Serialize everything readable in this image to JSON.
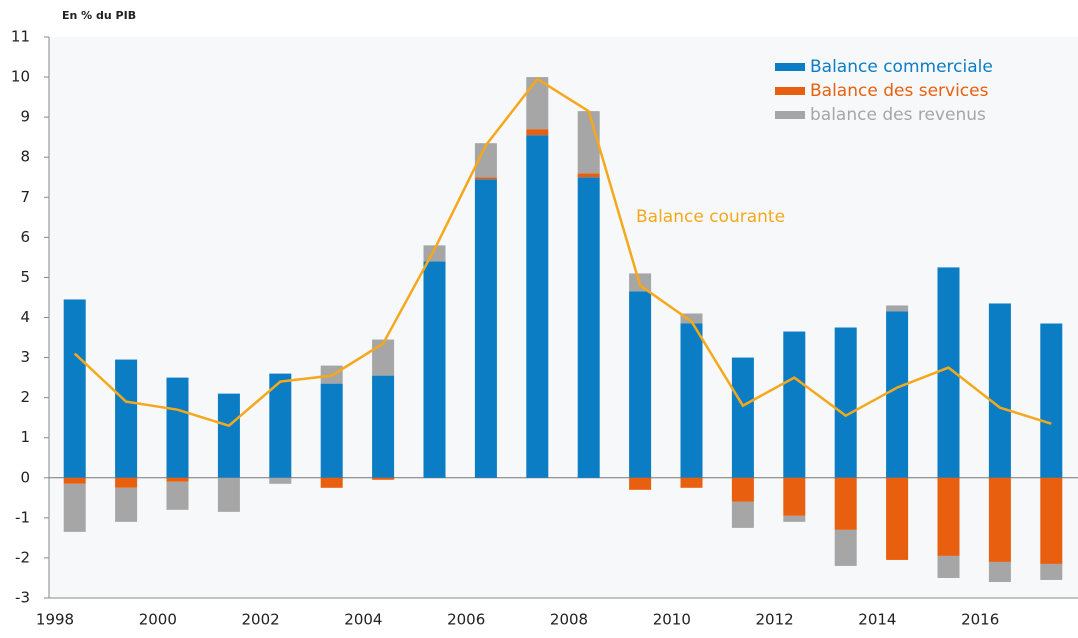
{
  "chart_data": {
    "type": "bar",
    "stacked": true,
    "title": "En % du PIB",
    "categories": [
      "1998",
      null,
      "2000",
      null,
      "2002",
      null,
      "2004",
      null,
      "2006",
      null,
      "2008",
      null,
      "2010",
      null,
      "2012",
      null,
      "2014",
      null,
      "2016",
      null
    ],
    "series": [
      {
        "name": "Balance commerciale",
        "color": "#0b7dc4",
        "values": [
          4.45,
          2.95,
          2.5,
          2.1,
          2.6,
          2.35,
          2.55,
          5.4,
          7.45,
          8.55,
          7.5,
          4.65,
          3.85,
          3.0,
          3.65,
          3.75,
          4.15,
          5.25,
          4.35,
          3.85
        ]
      },
      {
        "name": "Balance des services",
        "color": "#e8600f",
        "values": [
          -0.15,
          -0.25,
          -0.1,
          0,
          0,
          -0.25,
          -0.05,
          0,
          0.05,
          0.15,
          0.1,
          -0.3,
          -0.25,
          -0.6,
          -0.95,
          -1.3,
          -2.05,
          -1.95,
          -2.1,
          -2.15
        ]
      },
      {
        "name": "balance des revenus",
        "color": "#a6a6a6",
        "values": [
          -1.2,
          -0.85,
          -0.7,
          -0.85,
          -0.15,
          0.45,
          0.9,
          0.4,
          0.85,
          1.3,
          1.55,
          0.45,
          0.25,
          -0.65,
          -0.15,
          -0.9,
          0.15,
          -0.55,
          -0.5,
          -0.4
        ]
      },
      {
        "name": "Balance courante",
        "type": "line",
        "color": "#f5a81c",
        "values": [
          3.1,
          1.9,
          1.7,
          1.3,
          2.4,
          2.55,
          3.35,
          5.7,
          8.3,
          9.95,
          9.15,
          4.8,
          3.9,
          1.8,
          2.5,
          1.55,
          2.25,
          2.75,
          1.75,
          1.35
        ]
      }
    ],
    "ylim": [
      -3,
      11
    ],
    "yticks": [
      -3,
      -2,
      -1,
      0,
      1,
      2,
      3,
      4,
      5,
      6,
      7,
      8,
      9,
      10,
      11
    ],
    "grid": false,
    "legend": "top-right"
  }
}
